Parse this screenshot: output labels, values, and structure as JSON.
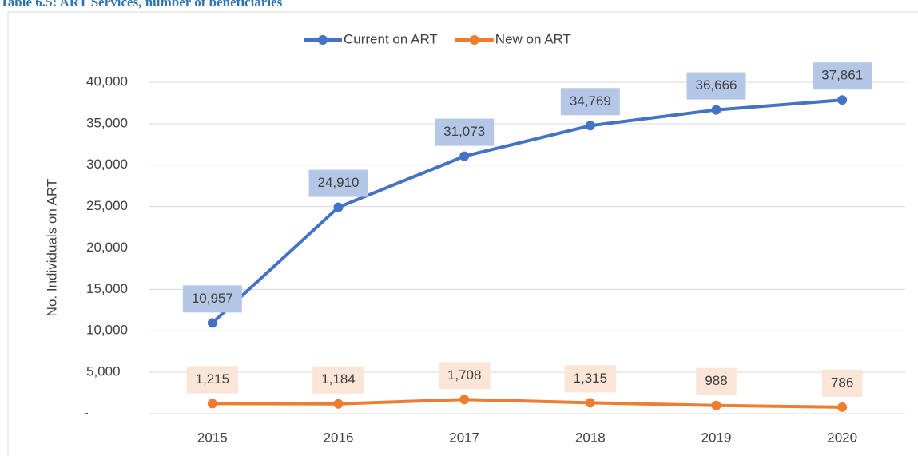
{
  "chart_data": {
    "type": "line",
    "title": "Table 6.5: ART Services, number of beneficiaries",
    "y_label": "No. Individuals on ART",
    "categories": [
      "2015",
      "2016",
      "2017",
      "2018",
      "2019",
      "2020"
    ],
    "series": [
      {
        "name": "Current on ART",
        "color": "#4472c4",
        "label_color": "#b4c7e7",
        "values": [
          10957,
          24910,
          31073,
          34769,
          36666,
          37861
        ],
        "value_labels": [
          "10,957",
          "24,910",
          "31,073",
          "34,769",
          "36,666",
          "37,861"
        ]
      },
      {
        "name": "New on ART",
        "color": "#ed7d31",
        "label_color": "#fbe5d6",
        "values": [
          1215,
          1184,
          1708,
          1315,
          988,
          786
        ],
        "value_labels": [
          "1,215",
          "1,184",
          "1,708",
          "1,315",
          "988",
          "786"
        ]
      }
    ],
    "ylim": [
      0,
      40000
    ],
    "yticks": [
      {
        "value": 0,
        "label": "-"
      },
      {
        "value": 5000,
        "label": "5,000"
      },
      {
        "value": 10000,
        "label": "10,000"
      },
      {
        "value": 15000,
        "label": "15,000"
      },
      {
        "value": 20000,
        "label": "20,000"
      },
      {
        "value": 25000,
        "label": "25,000"
      },
      {
        "value": 30000,
        "label": "30,000"
      },
      {
        "value": 35000,
        "label": "35,000"
      },
      {
        "value": 40000,
        "label": "40,000"
      }
    ],
    "grid": true,
    "legend": "top"
  }
}
